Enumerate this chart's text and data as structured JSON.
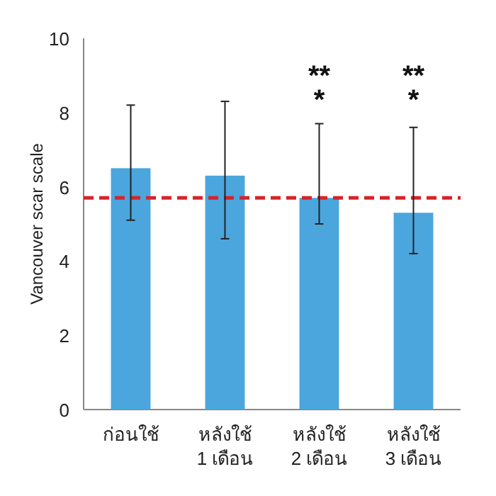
{
  "chart_data": {
    "type": "bar",
    "ylabel": "Vancouver scar scale",
    "categories": [
      "ก่อนใช้",
      "หลังใช้\n1 เดือน",
      "หลังใช้\n2 เดือน",
      "หลังใช้\n3 เดือน"
    ],
    "values": [
      6.5,
      6.3,
      5.7,
      5.3
    ],
    "color": "#4aa6dd",
    "errors": [
      [
        5.1,
        8.2
      ],
      [
        4.6,
        8.3
      ],
      [
        5.0,
        7.7
      ],
      [
        4.2,
        7.6
      ]
    ],
    "ylim": [
      0,
      10
    ],
    "yticks": [
      0,
      2,
      4,
      6,
      8,
      10
    ],
    "ref_lines": [
      {
        "axis": "y",
        "value": 5.7,
        "color": "#d8232a",
        "line_style": "dashed"
      }
    ],
    "annotations": [
      "**",
      "*",
      "**",
      "*"
    ],
    "grid": false
  }
}
